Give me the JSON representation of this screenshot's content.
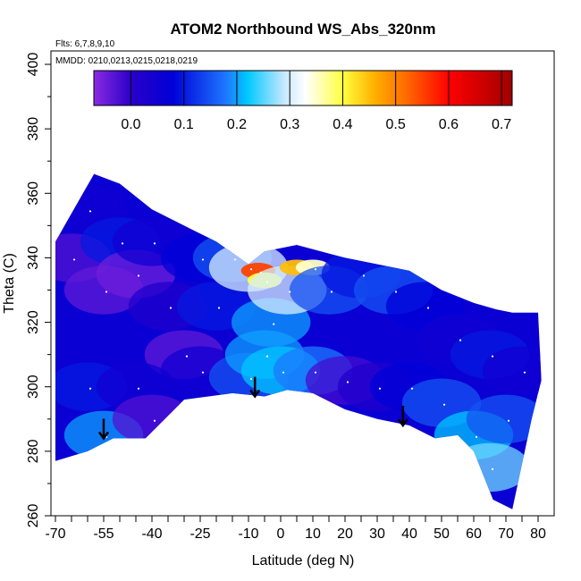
{
  "chart_data": {
    "type": "heatmap",
    "title": "ATOM2 Northbound WS_Abs_320nm",
    "subtitle_lines": [
      "Flts: 6,7,8,9,10",
      "MMDD: 0210,0213,0215,0218,0219"
    ],
    "xlabel": "Latitude (deg N)",
    "ylabel": "Theta (C)",
    "xlim": [
      -70,
      80
    ],
    "ylim": [
      260,
      400
    ],
    "x_tick_labels": [
      "-70",
      "-55",
      "-40",
      "-25",
      "-10",
      "0",
      "10",
      "20",
      "30",
      "40",
      "50",
      "60",
      "70",
      "80"
    ],
    "x_tick_values": [
      -70,
      -55,
      -40,
      -25,
      -10,
      0,
      10,
      20,
      30,
      40,
      50,
      60,
      70,
      80
    ],
    "x_minor_ticks": [
      -65,
      -60,
      -50,
      -45,
      -35,
      -30,
      -20,
      -15,
      -5,
      5,
      15,
      25,
      35,
      45,
      55,
      65,
      75
    ],
    "y_tick_labels": [
      "260",
      "280",
      "300",
      "320",
      "340",
      "360",
      "380",
      "400"
    ],
    "y_tick_values": [
      260,
      280,
      300,
      320,
      340,
      360,
      380,
      400
    ],
    "colorbar": {
      "range": [
        -0.07,
        0.72
      ],
      "tick_labels": [
        "0.0",
        "0.1",
        "0.2",
        "0.3",
        "0.4",
        "0.5",
        "0.6",
        "0.7"
      ],
      "tick_values": [
        0.0,
        0.1,
        0.2,
        0.3,
        0.4,
        0.5,
        0.6,
        0.7
      ],
      "color_stops": [
        {
          "value": -0.07,
          "color": "#8a2be2"
        },
        {
          "value": 0.0,
          "color": "#2a00c8"
        },
        {
          "value": 0.08,
          "color": "#0000d8"
        },
        {
          "value": 0.18,
          "color": "#1e78ff"
        },
        {
          "value": 0.22,
          "color": "#00c8ff"
        },
        {
          "value": 0.29,
          "color": "#c8e8ff"
        },
        {
          "value": 0.33,
          "color": "#ffffff"
        },
        {
          "value": 0.4,
          "color": "#ffff40"
        },
        {
          "value": 0.46,
          "color": "#ffb000"
        },
        {
          "value": 0.52,
          "color": "#ff6a00"
        },
        {
          "value": 0.6,
          "color": "#ff0000"
        },
        {
          "value": 0.72,
          "color": "#a00000"
        }
      ]
    },
    "data_extent_top": [
      [
        -58,
        366
      ],
      [
        -50,
        363
      ],
      [
        -40,
        355
      ],
      [
        -30,
        350
      ],
      [
        -20,
        345
      ],
      [
        -10,
        338
      ],
      [
        -5,
        342
      ],
      [
        5,
        344
      ],
      [
        20,
        340
      ],
      [
        30,
        338
      ],
      [
        40,
        336
      ],
      [
        50,
        330
      ],
      [
        60,
        326
      ],
      [
        67,
        324
      ],
      [
        72,
        323
      ]
    ],
    "data_extent_bottom": [
      [
        -70,
        277
      ],
      [
        -60,
        280
      ],
      [
        -52,
        284
      ],
      [
        -42,
        284
      ],
      [
        -30,
        296
      ],
      [
        -15,
        298
      ],
      [
        -5,
        297
      ],
      [
        2,
        299
      ],
      [
        10,
        298
      ],
      [
        20,
        293
      ],
      [
        30,
        290
      ],
      [
        40,
        288
      ],
      [
        48,
        284
      ],
      [
        55,
        285
      ],
      [
        60,
        280
      ],
      [
        66,
        265
      ],
      [
        72,
        262
      ]
    ],
    "cells": [
      {
        "lat": -65,
        "theta": 340,
        "value": -0.03
      },
      {
        "lat": -60,
        "theta": 355,
        "value": 0.05
      },
      {
        "lat": -55,
        "theta": 330,
        "value": -0.04
      },
      {
        "lat": -50,
        "theta": 345,
        "value": 0.1
      },
      {
        "lat": -45,
        "theta": 335,
        "value": -0.05
      },
      {
        "lat": -40,
        "theta": 345,
        "value": 0.05
      },
      {
        "lat": -35,
        "theta": 325,
        "value": 0.02
      },
      {
        "lat": -30,
        "theta": 310,
        "value": -0.04
      },
      {
        "lat": -25,
        "theta": 340,
        "value": 0.08
      },
      {
        "lat": -20,
        "theta": 325,
        "value": 0.1
      },
      {
        "lat": -15,
        "theta": 340,
        "value": 0.15
      },
      {
        "lat": -10,
        "theta": 337,
        "value": 0.3
      },
      {
        "lat": -7,
        "theta": 336,
        "value": 0.55
      },
      {
        "lat": -5,
        "theta": 333,
        "value": 0.4
      },
      {
        "lat": -3,
        "theta": 320,
        "value": 0.2
      },
      {
        "lat": 2,
        "theta": 330,
        "value": 0.3
      },
      {
        "lat": 5,
        "theta": 337,
        "value": 0.45
      },
      {
        "lat": 10,
        "theta": 337,
        "value": 0.35
      },
      {
        "lat": 15,
        "theta": 330,
        "value": 0.15
      },
      {
        "lat": 25,
        "theta": 335,
        "value": 0.1
      },
      {
        "lat": 35,
        "theta": 330,
        "value": 0.15
      },
      {
        "lat": 45,
        "theta": 325,
        "value": 0.08
      },
      {
        "lat": 55,
        "theta": 315,
        "value": 0.05
      },
      {
        "lat": 65,
        "theta": 310,
        "value": 0.1
      },
      {
        "lat": -60,
        "theta": 300,
        "value": 0.1
      },
      {
        "lat": -55,
        "theta": 285,
        "value": 0.2
      },
      {
        "lat": -45,
        "theta": 300,
        "value": 0.05
      },
      {
        "lat": -40,
        "theta": 290,
        "value": -0.03
      },
      {
        "lat": -25,
        "theta": 305,
        "value": 0.05
      },
      {
        "lat": -10,
        "theta": 303,
        "value": 0.15
      },
      {
        "lat": -5,
        "theta": 310,
        "value": 0.2
      },
      {
        "lat": 0,
        "theta": 305,
        "value": 0.22
      },
      {
        "lat": 10,
        "theta": 305,
        "value": 0.18
      },
      {
        "lat": 20,
        "theta": 302,
        "value": -0.02
      },
      {
        "lat": 30,
        "theta": 300,
        "value": 0.02
      },
      {
        "lat": 40,
        "theta": 300,
        "value": 0.08
      },
      {
        "lat": 50,
        "theta": 295,
        "value": 0.15
      },
      {
        "lat": 60,
        "theta": 285,
        "value": 0.22
      },
      {
        "lat": 65,
        "theta": 275,
        "value": 0.26
      },
      {
        "lat": 70,
        "theta": 290,
        "value": 0.15
      },
      {
        "lat": 75,
        "theta": 305,
        "value": 0.05
      }
    ],
    "arrows": [
      {
        "lat": -55,
        "theta": 284
      },
      {
        "lat": -8,
        "theta": 297
      },
      {
        "lat": 38,
        "theta": 288
      }
    ]
  }
}
